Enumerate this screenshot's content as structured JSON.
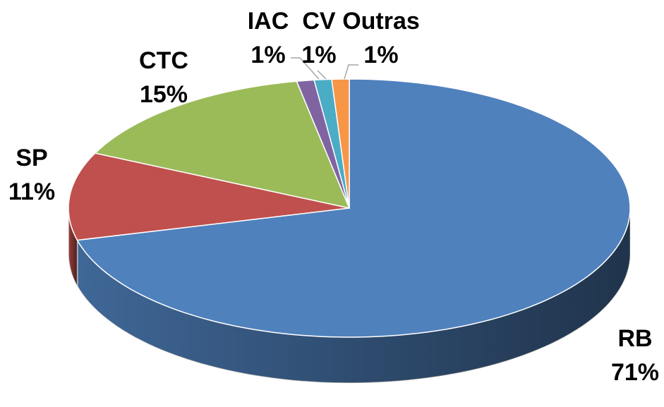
{
  "chart_data": {
    "type": "pie",
    "categories": [
      "RB",
      "SP",
      "CTC",
      "IAC",
      "CV",
      "Outras"
    ],
    "values": [
      71,
      11,
      15,
      1,
      1,
      1
    ],
    "value_labels": [
      "71%",
      "11%",
      "15%",
      "1%",
      "1%",
      "1%"
    ],
    "colors": [
      "#4f81bd",
      "#c0504d",
      "#9bbb59",
      "#8064a2",
      "#4bacc6",
      "#f79646"
    ]
  }
}
